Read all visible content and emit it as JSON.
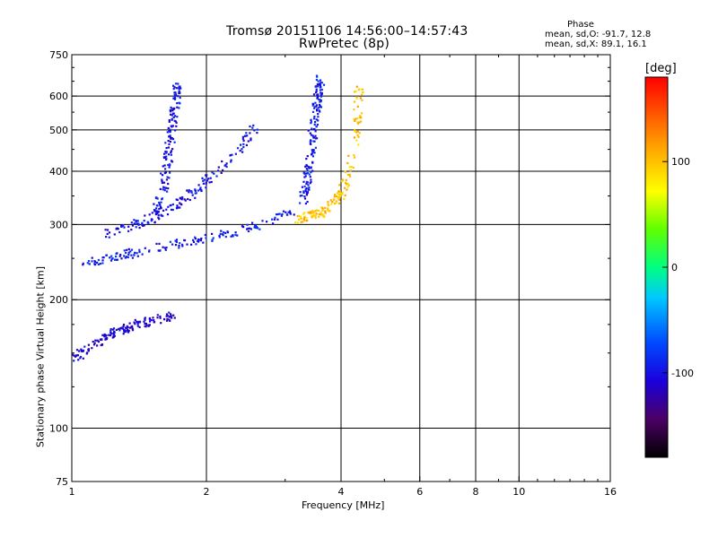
{
  "title": {
    "line1": "Tromsø 20151106 14:56:00–14:57:43",
    "line2": "RwPretec (8p)"
  },
  "phase_stats": {
    "heading": "Phase",
    "o_line": "mean, sd,O: -91.7, 12.8",
    "x_line": "mean, sd,X:  89.1, 16.1"
  },
  "chart_data": {
    "type": "scatter",
    "title": "Tromsø 20151106 14:56:00–14:57:43",
    "subtitle": "RwPretec (8p)",
    "xlabel": "Frequency [MHz]",
    "ylabel": "Stationary phase Virtual Height [km]",
    "x_scale": "log",
    "y_scale": "log",
    "xlim": [
      1,
      16
    ],
    "ylim": [
      75,
      750
    ],
    "x_ticks": [
      1,
      2,
      4,
      6,
      8,
      10,
      16
    ],
    "x_tick_labels": [
      "1",
      "2",
      "4",
      "6",
      "8",
      "10",
      "16"
    ],
    "y_ticks": [
      75,
      100,
      200,
      300,
      400,
      500,
      600,
      750
    ],
    "y_tick_labels": [
      "75",
      "100",
      "200",
      "300",
      "400",
      "500",
      "600",
      "750"
    ],
    "grid": true,
    "colorbar": {
      "unit": "[deg]",
      "range": [
        -180,
        180
      ],
      "ticks": [
        100,
        0,
        -100
      ],
      "tick_labels": [
        "100",
        "0",
        "-100"
      ]
    },
    "series": [
      {
        "name": "",
        "phase_deg": -95,
        "x": [
          1.06,
          1.15,
          1.3,
          1.5,
          1.7,
          2.0,
          2.4,
          2.8,
          3.1
        ],
        "y": [
          240,
          248,
          255,
          262,
          270,
          278,
          290,
          305,
          325
        ]
      },
      {
        "name": "",
        "phase_deg": -100,
        "x": [
          1.2,
          1.4,
          1.6,
          1.8,
          2.0,
          2.3,
          2.6
        ],
        "y": [
          285,
          300,
          320,
          345,
          380,
          430,
          520
        ]
      },
      {
        "name": "",
        "phase_deg": -100,
        "x": [
          1.5,
          1.6,
          1.65,
          1.7,
          1.72
        ],
        "y": [
          300,
          360,
          450,
          560,
          640
        ]
      },
      {
        "name": "",
        "phase_deg": -95,
        "x": [
          3.3,
          3.4,
          3.5,
          3.6
        ],
        "y": [
          340,
          420,
          540,
          660
        ]
      },
      {
        "name": "",
        "phase_deg": 100,
        "x": [
          3.2,
          3.6,
          4.0,
          4.3,
          4.4
        ],
        "y": [
          310,
          320,
          350,
          450,
          660
        ]
      },
      {
        "name": "",
        "phase_deg": -110,
        "x": [
          1.0,
          1.2,
          1.4,
          1.7
        ],
        "y": [
          145,
          165,
          175,
          185
        ]
      }
    ]
  }
}
